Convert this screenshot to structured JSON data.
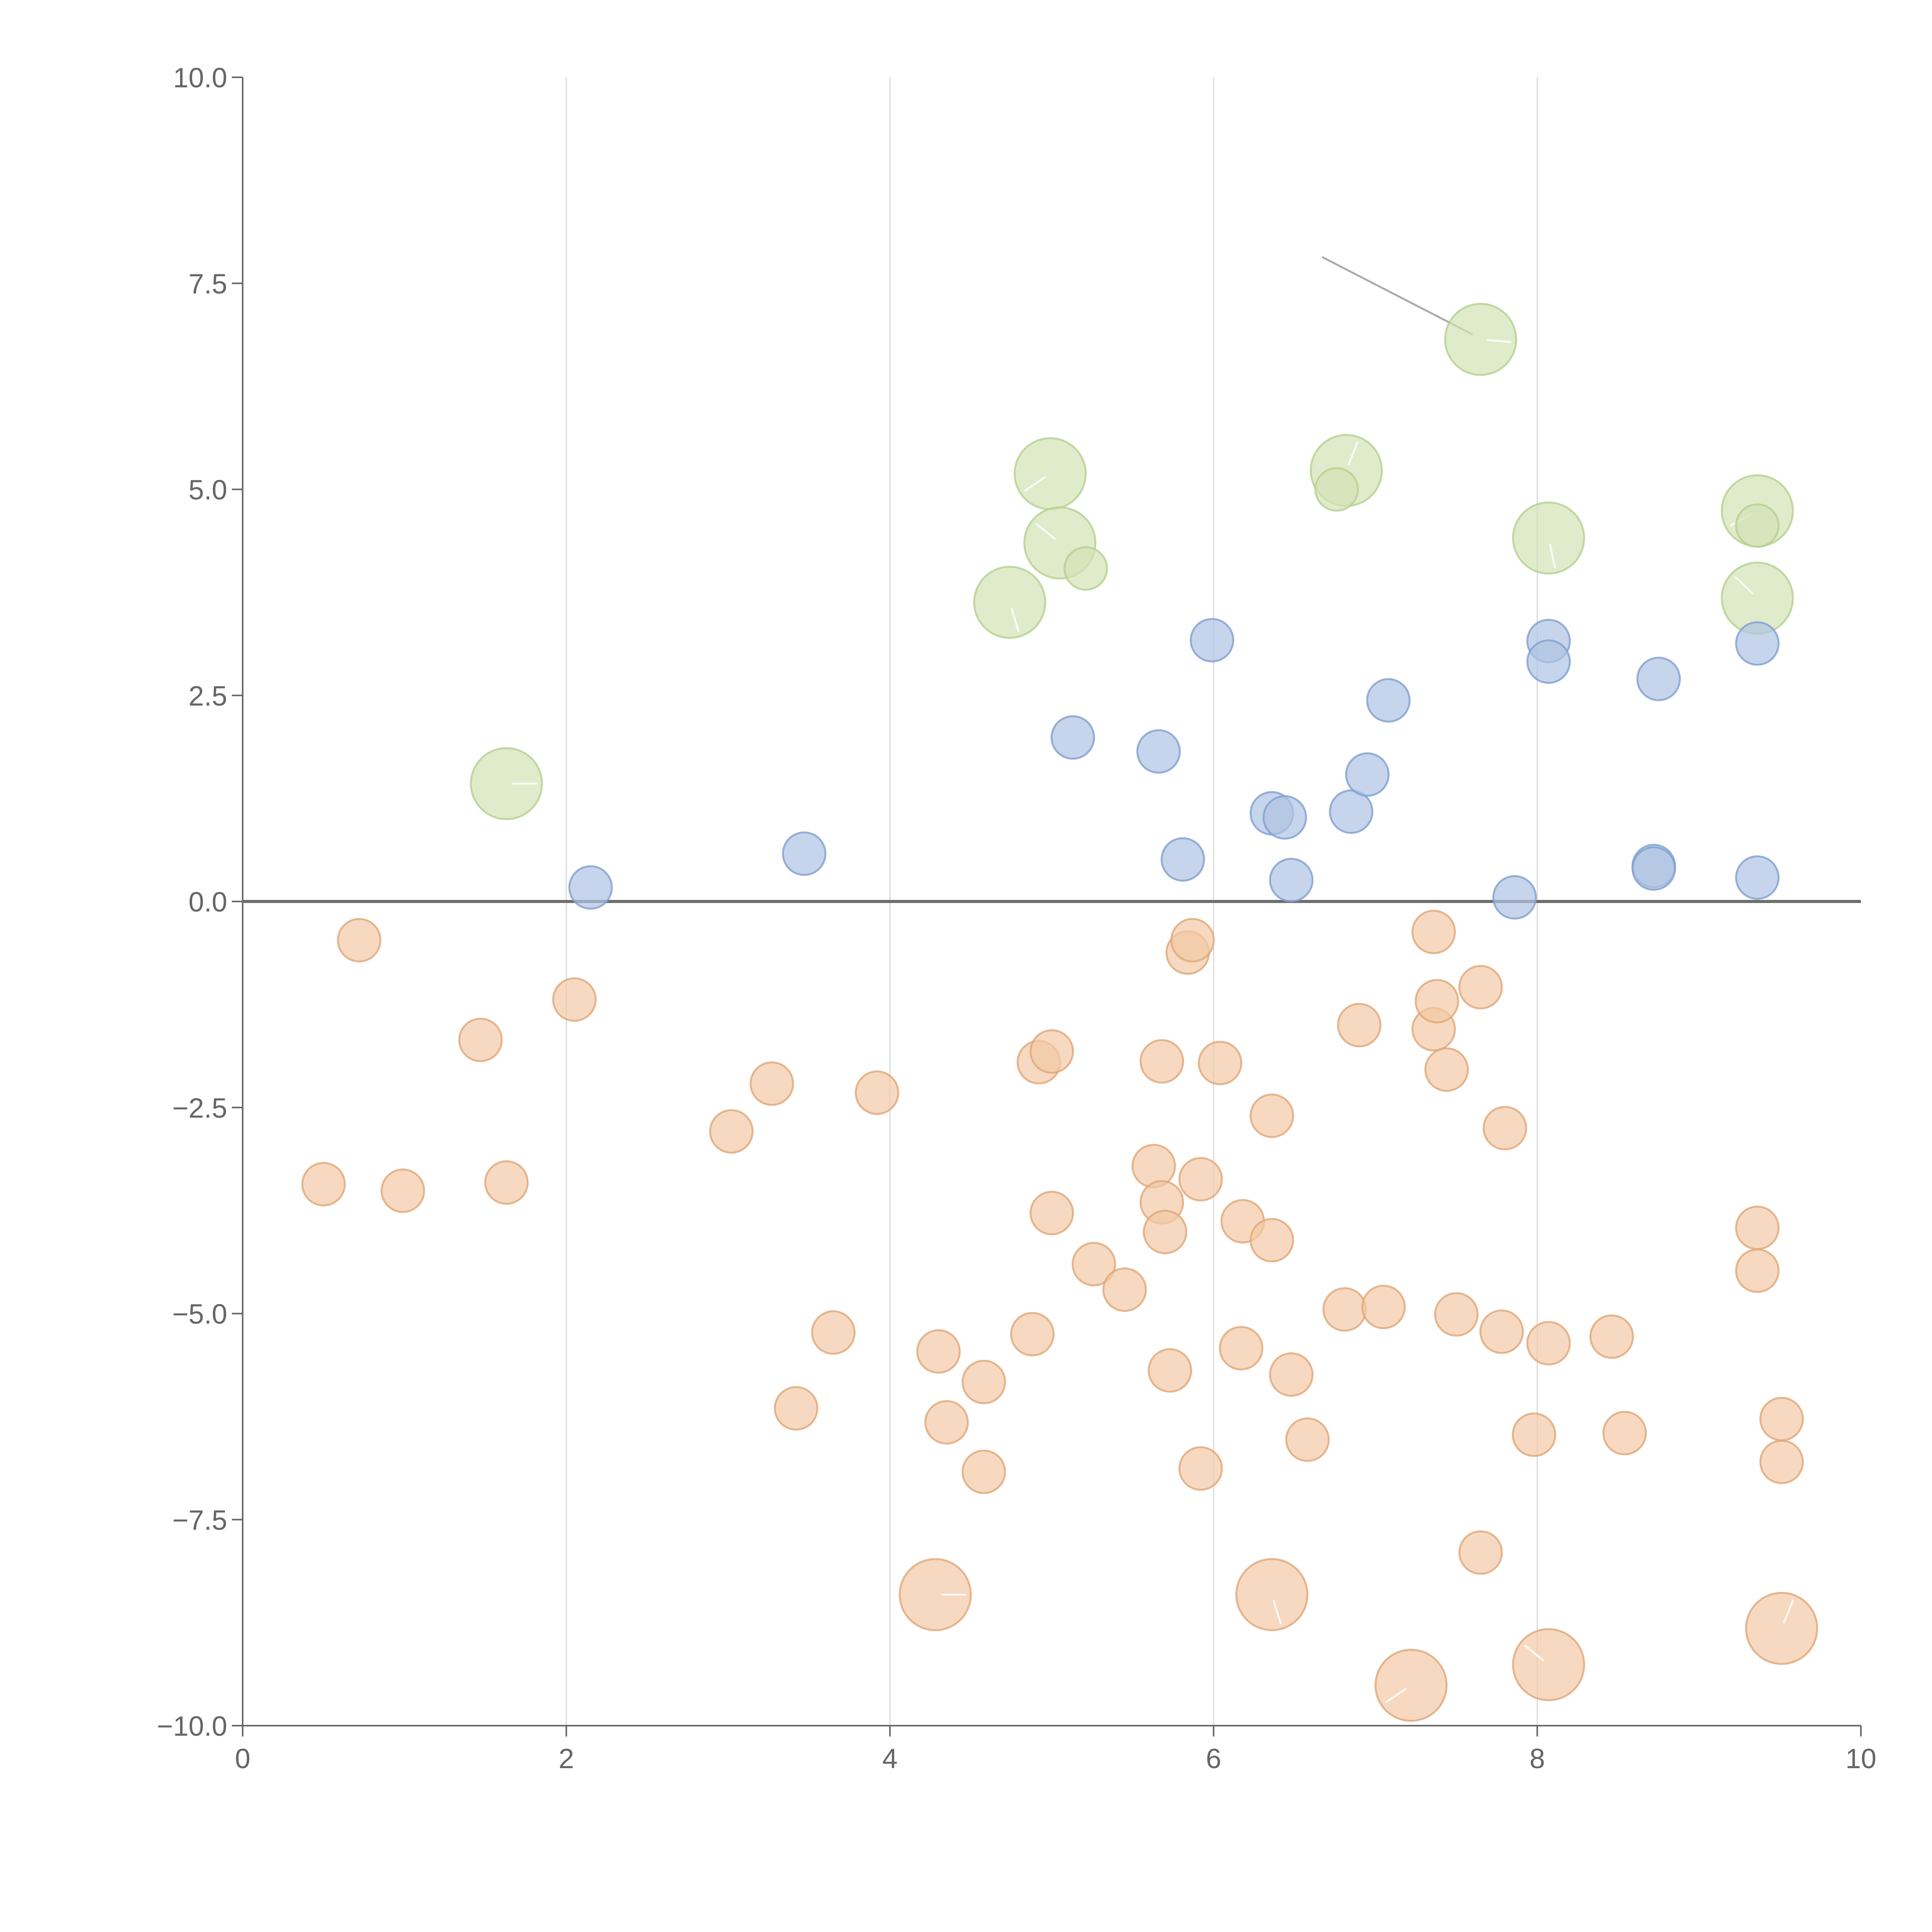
{
  "chart_data": {
    "type": "scatter",
    "title": "",
    "xlabel": "",
    "ylabel": "",
    "xlim": [
      0,
      10
    ],
    "ylim": [
      -10,
      10
    ],
    "grid": "vertical",
    "x_ticks": [
      0,
      2,
      4,
      6,
      8,
      10
    ],
    "x_tick_labels": [
      "0",
      "2",
      "4",
      "6",
      "8",
      "10"
    ],
    "y_ticks": [
      10,
      7.5,
      5,
      2.5,
      0,
      -2.5,
      -5,
      -7.5,
      -10
    ],
    "y_tick_labels": [
      "10.0",
      "7.5",
      "5.0",
      "2.5",
      "0.0",
      "−2.5",
      "−5.0",
      "−7.5",
      "−10.0"
    ],
    "reference_line_y": 0,
    "colors": {
      "blue_fill": "#aec3e3",
      "blue_stroke": "#7f9fd0",
      "orange_fill": "#f2c9a5",
      "orange_stroke": "#e0a678",
      "green_fill": "#d3e2b5",
      "green_stroke": "#b5cf8e"
    },
    "series": [
      {
        "name": "blue",
        "size": "small",
        "points": [
          [
            2.15,
            0.17
          ],
          [
            3.47,
            0.58
          ],
          [
            5.13,
            1.99
          ],
          [
            5.66,
            1.82
          ],
          [
            5.81,
            0.51
          ],
          [
            5.99,
            3.17
          ],
          [
            6.36,
            1.07
          ],
          [
            6.44,
            1.02
          ],
          [
            6.48,
            0.26
          ],
          [
            6.85,
            1.09
          ],
          [
            6.95,
            1.54
          ],
          [
            7.08,
            2.44
          ],
          [
            7.86,
            0.05
          ],
          [
            8.07,
            3.16
          ],
          [
            8.07,
            2.91
          ],
          [
            8.72,
            0.43
          ],
          [
            8.72,
            0.4
          ],
          [
            8.75,
            2.7
          ],
          [
            9.36,
            3.13
          ],
          [
            9.36,
            0.29
          ]
        ]
      },
      {
        "name": "orange",
        "size": "small",
        "points": [
          [
            0.5,
            -3.43
          ],
          [
            0.72,
            -0.47
          ],
          [
            0.99,
            -3.51
          ],
          [
            1.47,
            -1.68
          ],
          [
            1.63,
            -3.41
          ],
          [
            2.05,
            -1.19
          ],
          [
            3.02,
            -2.79
          ],
          [
            3.27,
            -2.21
          ],
          [
            3.42,
            -6.15
          ],
          [
            3.65,
            -5.23
          ],
          [
            3.92,
            -2.32
          ],
          [
            4.3,
            -5.46
          ],
          [
            4.35,
            -6.32
          ],
          [
            4.58,
            -5.83
          ],
          [
            4.58,
            -6.92
          ],
          [
            4.88,
            -5.25
          ],
          [
            4.92,
            -1.95
          ],
          [
            5.0,
            -1.82
          ],
          [
            5.0,
            -3.78
          ],
          [
            5.26,
            -4.4
          ],
          [
            5.45,
            -4.71
          ],
          [
            5.63,
            -3.21
          ],
          [
            5.68,
            -1.94
          ],
          [
            5.68,
            -3.65
          ],
          [
            5.7,
            -4.01
          ],
          [
            5.73,
            -5.69
          ],
          [
            5.84,
            -0.62
          ],
          [
            5.87,
            -0.47
          ],
          [
            5.92,
            -3.37
          ],
          [
            5.92,
            -6.88
          ],
          [
            6.04,
            -1.96
          ],
          [
            6.17,
            -5.42
          ],
          [
            6.18,
            -3.88
          ],
          [
            6.36,
            -2.6
          ],
          [
            6.36,
            -4.11
          ],
          [
            6.48,
            -5.74
          ],
          [
            6.58,
            -6.53
          ],
          [
            6.81,
            -4.95
          ],
          [
            6.9,
            -1.5
          ],
          [
            7.05,
            -4.92
          ],
          [
            7.36,
            -0.37
          ],
          [
            7.36,
            -1.55
          ],
          [
            7.38,
            -1.21
          ],
          [
            7.44,
            -2.04
          ],
          [
            7.5,
            -5.01
          ],
          [
            7.65,
            -1.04
          ],
          [
            7.65,
            -7.9
          ],
          [
            7.78,
            -5.22
          ],
          [
            7.8,
            -2.75
          ],
          [
            7.98,
            -6.47
          ],
          [
            8.07,
            -5.36
          ],
          [
            8.46,
            -5.28
          ],
          [
            8.54,
            -6.45
          ],
          [
            9.36,
            -3.96
          ],
          [
            9.36,
            -4.48
          ],
          [
            9.51,
            -6.28
          ],
          [
            9.51,
            -6.8
          ]
        ]
      },
      {
        "name": "orange-large",
        "size": "large",
        "points": [
          [
            4.28,
            -8.41
          ],
          [
            6.36,
            -8.41
          ],
          [
            7.22,
            -9.51
          ],
          [
            8.07,
            -9.26
          ],
          [
            9.51,
            -8.82
          ]
        ]
      },
      {
        "name": "green-large",
        "size": "large",
        "points": [
          [
            1.63,
            1.43
          ],
          [
            4.74,
            3.63
          ],
          [
            4.99,
            5.19
          ],
          [
            5.05,
            4.35
          ],
          [
            6.82,
            5.23
          ],
          [
            7.65,
            6.82
          ],
          [
            8.07,
            4.41
          ],
          [
            9.36,
            4.74
          ],
          [
            9.36,
            3.68
          ]
        ]
      },
      {
        "name": "green-small",
        "size": "small",
        "points": [
          [
            5.21,
            4.04
          ],
          [
            6.76,
            5.0
          ],
          [
            9.36,
            4.56
          ]
        ]
      }
    ],
    "annotations": [
      {
        "type": "leader-line",
        "from": [
          6.67,
          7.82
        ],
        "to": [
          7.6,
          6.88
        ]
      }
    ]
  }
}
